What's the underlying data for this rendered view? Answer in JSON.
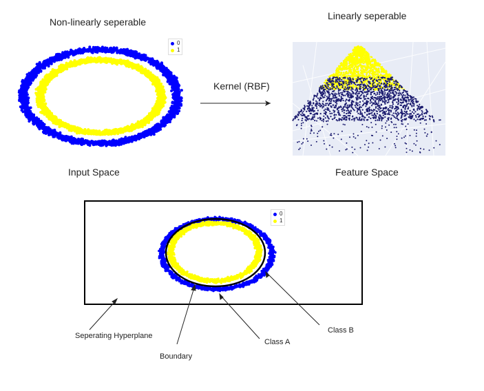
{
  "top": {
    "left_title": "Non-linearly seperable",
    "right_title": "Linearly seperable",
    "arrow_label": "Kernel (RBF)",
    "left_caption": "Input Space",
    "right_caption": "Feature Space"
  },
  "legend": {
    "items": [
      {
        "label": "0",
        "color": "#0000ff"
      },
      {
        "label": "1",
        "color": "#ffff00"
      }
    ]
  },
  "bottom": {
    "labels": {
      "hyperplane": "Seperating Hyperplane",
      "boundary": "Boundary",
      "class_a": "Class A",
      "class_b": "Class B"
    }
  },
  "colors": {
    "class0": "#0000ff",
    "class1": "#ffff00",
    "feature_space_bg": "#e8ecf6",
    "feature_class0": "#1a1a6e"
  }
}
